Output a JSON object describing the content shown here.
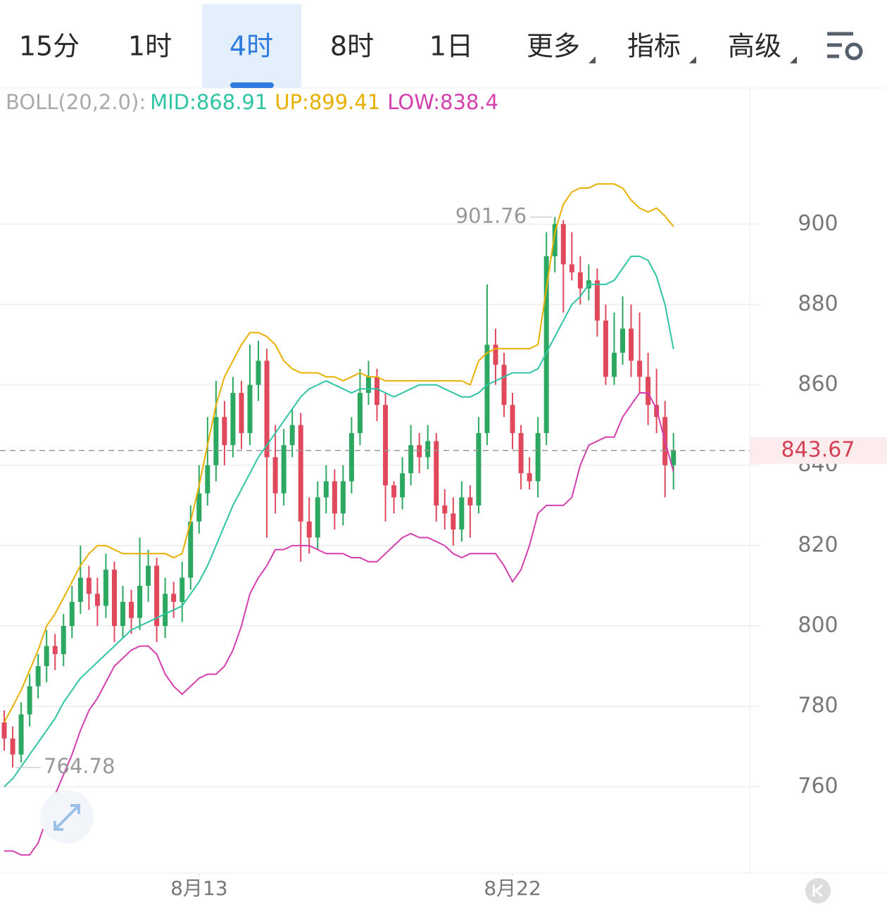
{
  "toolbar": {
    "tabs": [
      "15分",
      "1时",
      "4时",
      "8时",
      "1日",
      "更多",
      "指标",
      "高级"
    ],
    "active": 2
  },
  "chart_data": {
    "type": "candlestick",
    "indicator": "BOLL(20,2.0):",
    "up_color": "#2ca860",
    "down_color": "#e0485c",
    "ylim": [
      738.5,
      933
    ],
    "yticks": [
      760,
      780,
      800,
      820,
      840,
      860,
      880,
      900
    ],
    "grid": true,
    "xlim": [
      -0.5,
      88
    ],
    "xticks": [
      {
        "value": 23,
        "label": "8月13"
      },
      {
        "value": 60,
        "label": "8月22"
      }
    ],
    "ohlc": [
      [
        776,
        779,
        769,
        772
      ],
      [
        772,
        775,
        764.78,
        768
      ],
      [
        768,
        781,
        766,
        778
      ],
      [
        778,
        788,
        775,
        785
      ],
      [
        785,
        793,
        782,
        790
      ],
      [
        790,
        799,
        786,
        795
      ],
      [
        795,
        798,
        789,
        793
      ],
      [
        793,
        803,
        790,
        800
      ],
      [
        800,
        810,
        797,
        806
      ],
      [
        806,
        820,
        803,
        812
      ],
      [
        812,
        815,
        804,
        808
      ],
      [
        808,
        812,
        800,
        805
      ],
      [
        805,
        818,
        802,
        814
      ],
      [
        814,
        816,
        796,
        800
      ],
      [
        800,
        810,
        797,
        806
      ],
      [
        806,
        809,
        798,
        802
      ],
      [
        802,
        822,
        799,
        810
      ],
      [
        810,
        819,
        806,
        815
      ],
      [
        815,
        817,
        796,
        800
      ],
      [
        800,
        812,
        797,
        808
      ],
      [
        808,
        811,
        802,
        806
      ],
      [
        806,
        816,
        801,
        812
      ],
      [
        812,
        830,
        809,
        826
      ],
      [
        826,
        840,
        823,
        833
      ],
      [
        833,
        852,
        830,
        840
      ],
      [
        840,
        861,
        836,
        852
      ],
      [
        852,
        856,
        840,
        845
      ],
      [
        845,
        862,
        842,
        858
      ],
      [
        858,
        861,
        844,
        848
      ],
      [
        848,
        870,
        845,
        860
      ],
      [
        860,
        871,
        856,
        866
      ],
      [
        866,
        869,
        822,
        842
      ],
      [
        842,
        850,
        828,
        833
      ],
      [
        833,
        849,
        830,
        845
      ],
      [
        845,
        854,
        842,
        850
      ],
      [
        850,
        853,
        816,
        826
      ],
      [
        826,
        832,
        818,
        822
      ],
      [
        822,
        836,
        819,
        832
      ],
      [
        832,
        840,
        828,
        836
      ],
      [
        836,
        839,
        824,
        828
      ],
      [
        828,
        840,
        825,
        836
      ],
      [
        836,
        852,
        833,
        848
      ],
      [
        848,
        864,
        845,
        858
      ],
      [
        858,
        866,
        855,
        862
      ],
      [
        862,
        864,
        851,
        855
      ],
      [
        855,
        858,
        826,
        835
      ],
      [
        835,
        836,
        828,
        832
      ],
      [
        832,
        842,
        829,
        838
      ],
      [
        838,
        850,
        835,
        845
      ],
      [
        845,
        848,
        838,
        842
      ],
      [
        842,
        850,
        839,
        846
      ],
      [
        846,
        848,
        826,
        830
      ],
      [
        830,
        834,
        824,
        828
      ],
      [
        828,
        832,
        820,
        824
      ],
      [
        824,
        836,
        821,
        832
      ],
      [
        832,
        835,
        822,
        830
      ],
      [
        830,
        852,
        828,
        848
      ],
      [
        848,
        885,
        845,
        870
      ],
      [
        870,
        874,
        860,
        865
      ],
      [
        865,
        868,
        852,
        855
      ],
      [
        855,
        858,
        844,
        848
      ],
      [
        848,
        850,
        834,
        838
      ],
      [
        838,
        842,
        834,
        836
      ],
      [
        836,
        852,
        832,
        848
      ],
      [
        848,
        898,
        845,
        892
      ],
      [
        892,
        901.76,
        888,
        900
      ],
      [
        900,
        901,
        878,
        890
      ],
      [
        890,
        898,
        886,
        888
      ],
      [
        888,
        892,
        880,
        884
      ],
      [
        884,
        890,
        881,
        886
      ],
      [
        886,
        889,
        872,
        876
      ],
      [
        876,
        880,
        860,
        862
      ],
      [
        862,
        878,
        860,
        868
      ],
      [
        868,
        882,
        865,
        874
      ],
      [
        874,
        880,
        862,
        866
      ],
      [
        866,
        878,
        858,
        862
      ],
      [
        862,
        868,
        850,
        855
      ],
      [
        855,
        864,
        848,
        852
      ],
      [
        852,
        856,
        832,
        840
      ],
      [
        840,
        848,
        834,
        843.67
      ]
    ],
    "series": [
      {
        "name": "MID:",
        "color": "#2fc4a4",
        "values": [
          760,
          762,
          765,
          768,
          771,
          774,
          777,
          781,
          784,
          787,
          789,
          791,
          793,
          795,
          797,
          799,
          800,
          801,
          802,
          803,
          804,
          805,
          808,
          811,
          815,
          820,
          825,
          830,
          834,
          838,
          842,
          845,
          848,
          851,
          854,
          857,
          859,
          860,
          861,
          860,
          859,
          858,
          859,
          859,
          859,
          858,
          857,
          858,
          859,
          860,
          860,
          860,
          859,
          858,
          857,
          857,
          858,
          860,
          861,
          862,
          863,
          863,
          863,
          864,
          868,
          872,
          876,
          880,
          882,
          885,
          885,
          885,
          886,
          889,
          892,
          892,
          891,
          887,
          880,
          868.91
        ]
      },
      {
        "name": "UP:",
        "color": "#e8b000",
        "values": [
          776,
          780,
          784,
          789,
          794,
          800,
          803,
          807,
          811,
          815,
          818,
          820,
          820,
          819,
          818,
          818,
          818,
          818,
          818,
          818,
          817,
          818,
          826,
          835,
          845,
          855,
          862,
          866,
          870,
          873,
          873,
          872,
          870,
          866,
          864,
          863,
          863,
          863,
          862,
          862,
          861,
          862,
          863,
          862,
          862,
          861,
          861,
          861,
          861,
          861,
          861,
          861,
          861,
          861,
          861,
          860,
          866,
          868,
          869,
          869,
          869,
          869,
          869,
          870,
          884,
          898,
          905,
          908,
          909,
          909,
          910,
          910,
          910,
          909,
          906,
          904,
          903,
          904,
          902,
          899.41
        ]
      },
      {
        "name": "LOW:",
        "color": "#d43fae",
        "values": [
          744,
          744,
          743,
          743,
          746,
          752,
          758,
          763,
          768,
          774,
          779,
          782,
          786,
          790,
          792,
          794,
          795,
          795,
          793,
          788,
          785,
          783,
          785,
          787,
          788,
          788,
          790,
          794,
          800,
          808,
          812,
          815,
          819,
          819,
          820,
          820,
          820,
          819,
          818,
          818,
          818,
          817,
          817,
          816,
          816,
          818,
          820,
          822,
          823,
          822,
          822,
          821,
          820,
          818,
          817,
          818,
          818,
          818,
          818,
          815,
          811,
          814,
          820,
          828,
          830,
          830,
          830,
          832,
          840,
          845,
          846,
          847,
          847,
          852,
          855,
          858,
          858,
          854,
          846,
          838.4
        ]
      }
    ]
  }
}
